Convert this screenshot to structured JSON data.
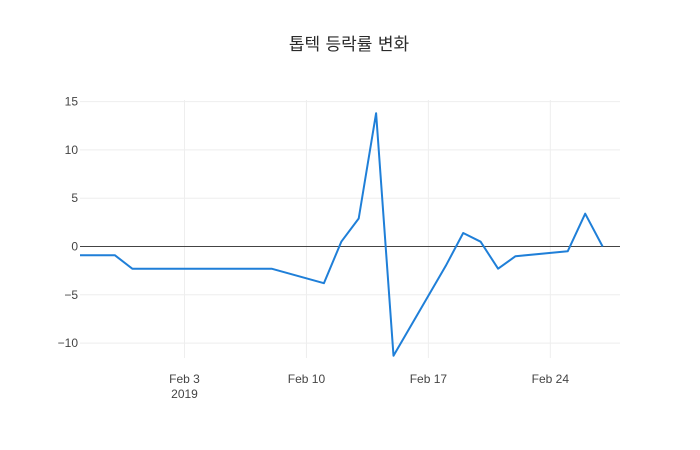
{
  "chart_data": {
    "type": "line",
    "title": "톱텍 등락률 변화",
    "xlabel": "",
    "ylabel": "",
    "x_range": [
      "2019-01-28",
      "2019-02-28"
    ],
    "ylim": [
      -12.5,
      16
    ],
    "yticks": [
      15,
      10,
      5,
      0,
      -5,
      -10
    ],
    "ytick_labels": [
      "15",
      "10",
      "5",
      "0",
      "−5",
      "−10"
    ],
    "xticks": [
      {
        "date": "2019-02-03",
        "label": "Feb 3",
        "sublabel": "2019"
      },
      {
        "date": "2019-02-10",
        "label": "Feb 10",
        "sublabel": ""
      },
      {
        "date": "2019-02-17",
        "label": "Feb 17",
        "sublabel": ""
      },
      {
        "date": "2019-02-24",
        "label": "Feb 24",
        "sublabel": ""
      }
    ],
    "grid": true,
    "zero_line": true,
    "series": [
      {
        "color": "#1f7fd8",
        "points": [
          {
            "x": "2019-01-28",
            "y": -0.9
          },
          {
            "x": "2019-01-30",
            "y": -0.9
          },
          {
            "x": "2019-01-31",
            "y": -2.3
          },
          {
            "x": "2019-02-08",
            "y": -2.3
          },
          {
            "x": "2019-02-11",
            "y": -3.8
          },
          {
            "x": "2019-02-12",
            "y": 0.5
          },
          {
            "x": "2019-02-13",
            "y": 2.9
          },
          {
            "x": "2019-02-14",
            "y": 13.8
          },
          {
            "x": "2019-02-15",
            "y": -11.3
          },
          {
            "x": "2019-02-18",
            "y": -2.0
          },
          {
            "x": "2019-02-19",
            "y": 1.4
          },
          {
            "x": "2019-02-20",
            "y": 0.5
          },
          {
            "x": "2019-02-21",
            "y": -2.3
          },
          {
            "x": "2019-02-22",
            "y": -1.0
          },
          {
            "x": "2019-02-25",
            "y": -0.5
          },
          {
            "x": "2019-02-26",
            "y": 3.4
          },
          {
            "x": "2019-02-27",
            "y": 0.0
          }
        ]
      }
    ]
  }
}
